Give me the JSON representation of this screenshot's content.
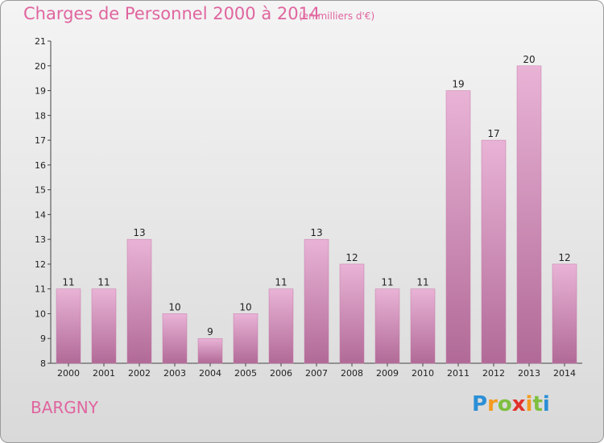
{
  "header": {
    "title": "Charges de Personnel 2000 à 2014",
    "subtitle": "(en milliers d'€)"
  },
  "commune": "BARGNY",
  "logo": {
    "letters": [
      "P",
      "r",
      "o",
      "x",
      "i",
      "t",
      "i"
    ],
    "colors": [
      "#2b8fd6",
      "#f39a1e",
      "#7fbf3f",
      "#e2322b",
      "#f39a1e",
      "#7fbf3f",
      "#2b8fd6"
    ]
  },
  "colors": {
    "bar": "#d98fbd",
    "bar_light": "#e9b3d6",
    "bar_dark": "#b16a97",
    "axis": "#444444"
  },
  "chart_data": {
    "type": "bar",
    "categories": [
      "2000",
      "2001",
      "2002",
      "2003",
      "2004",
      "2005",
      "2006",
      "2007",
      "2008",
      "2009",
      "2010",
      "2011",
      "2012",
      "2013",
      "2014"
    ],
    "values": [
      11,
      11,
      13,
      10,
      9,
      10,
      11,
      13,
      12,
      11,
      11,
      19,
      17,
      20,
      12
    ],
    "data_labels": [
      "11",
      "11",
      "13",
      "10",
      "9",
      "10",
      "11",
      "13",
      "12",
      "11",
      "11",
      "19",
      "17",
      "20",
      "12"
    ],
    "ylim": [
      8,
      21
    ],
    "yticks": [
      8,
      9,
      10,
      11,
      12,
      13,
      14,
      15,
      16,
      17,
      18,
      19,
      20,
      21
    ],
    "grid": false,
    "xlabel": "",
    "ylabel": ""
  }
}
